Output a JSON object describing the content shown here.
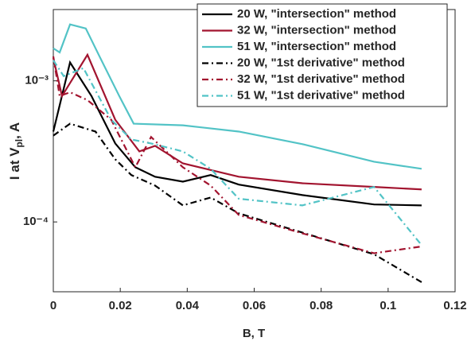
{
  "chart_data": {
    "type": "line",
    "log_y": true,
    "legend": "upper right",
    "x_label": "B, T",
    "y_label": [
      "I at V",
      "pl",
      ", A"
    ],
    "xlim": [
      0,
      0.12
    ],
    "xticks": [
      0,
      0.02,
      0.04,
      0.06,
      0.08,
      0.1,
      0.12
    ],
    "ylim": [
      3.2e-05,
      0.0032
    ],
    "yticks": [
      {
        "value": 0.0001,
        "label": "10⁻⁴"
      },
      {
        "value": 0.001,
        "label": "10⁻³"
      }
    ],
    "series": [
      {
        "name": "20 W, \"intersection\" method",
        "color": "#000000",
        "style": "solid",
        "x": [
          0,
          0.005,
          0.0114,
          0.0185,
          0.0245,
          0.0304,
          0.0387,
          0.047,
          0.0554,
          0.0744,
          0.0958,
          0.11
        ],
        "values": [
          0.000437,
          0.00135,
          0.00078,
          0.00036,
          0.000244,
          0.000209,
          0.000193,
          0.000215,
          0.000184,
          0.000155,
          0.000133,
          0.000131
        ]
      },
      {
        "name": "32 W, \"intersection\" method",
        "color": "#a2142f",
        "style": "solid",
        "x": [
          0,
          0.0026,
          0.0102,
          0.0185,
          0.0257,
          0.0304,
          0.0387,
          0.0554,
          0.0744,
          0.0958,
          0.11
        ],
        "values": [
          0.00145,
          0.00078,
          0.00153,
          0.00053,
          0.000316,
          0.000346,
          0.00026,
          0.000209,
          0.000188,
          0.000177,
          0.00017
        ]
      },
      {
        "name": "51 W, \"intersection\" method",
        "color": "#52c3c6",
        "style": "solid",
        "x": [
          0,
          0.0019,
          0.005,
          0.0097,
          0.0138,
          0.0197,
          0.024,
          0.0387,
          0.0554,
          0.0744,
          0.0958,
          0.11
        ],
        "values": [
          0.0017,
          0.00159,
          0.00251,
          0.00235,
          0.00149,
          0.00078,
          0.000497,
          0.000484,
          0.000437,
          0.000356,
          0.000267,
          0.000238
        ]
      },
      {
        "name": "20 W, \"1st derivative\" method",
        "color": "#000000",
        "style": "dashdot",
        "x": [
          0,
          0.005,
          0.0126,
          0.0185,
          0.0233,
          0.0304,
          0.0387,
          0.047,
          0.0554,
          0.0744,
          0.0958,
          0.11
        ],
        "values": [
          0.000409,
          0.000497,
          0.000437,
          0.000278,
          0.000215,
          0.000181,
          0.000131,
          0.000149,
          0.000115,
          8.4e-05,
          5.9e-05,
          3.74e-05
        ]
      },
      {
        "name": "32 W, \"1st derivative\" method",
        "color": "#a2142f",
        "style": "dashdot",
        "x": [
          0,
          0.0019,
          0.005,
          0.0102,
          0.0173,
          0.0245,
          0.0292,
          0.0387,
          0.047,
          0.0554,
          0.0744,
          0.0958,
          0.11
        ],
        "values": [
          0.00149,
          0.00078,
          0.00083,
          0.00073,
          0.00053,
          0.000244,
          0.0004,
          0.000244,
          0.000181,
          0.000112,
          8.3e-05,
          6e-05,
          6.7e-05
        ]
      },
      {
        "name": "51 W, \"1st derivative\" method",
        "color": "#52c3c6",
        "style": "dashdot",
        "x": [
          0,
          0.0031,
          0.009,
          0.0173,
          0.0233,
          0.0292,
          0.0387,
          0.047,
          0.0554,
          0.0744,
          0.0958,
          0.11
        ],
        "values": [
          0.0014,
          0.00108,
          0.00123,
          0.00053,
          0.000384,
          0.00036,
          0.000316,
          0.000238,
          0.000146,
          0.000131,
          0.000177,
          6.85e-05
        ]
      }
    ]
  }
}
